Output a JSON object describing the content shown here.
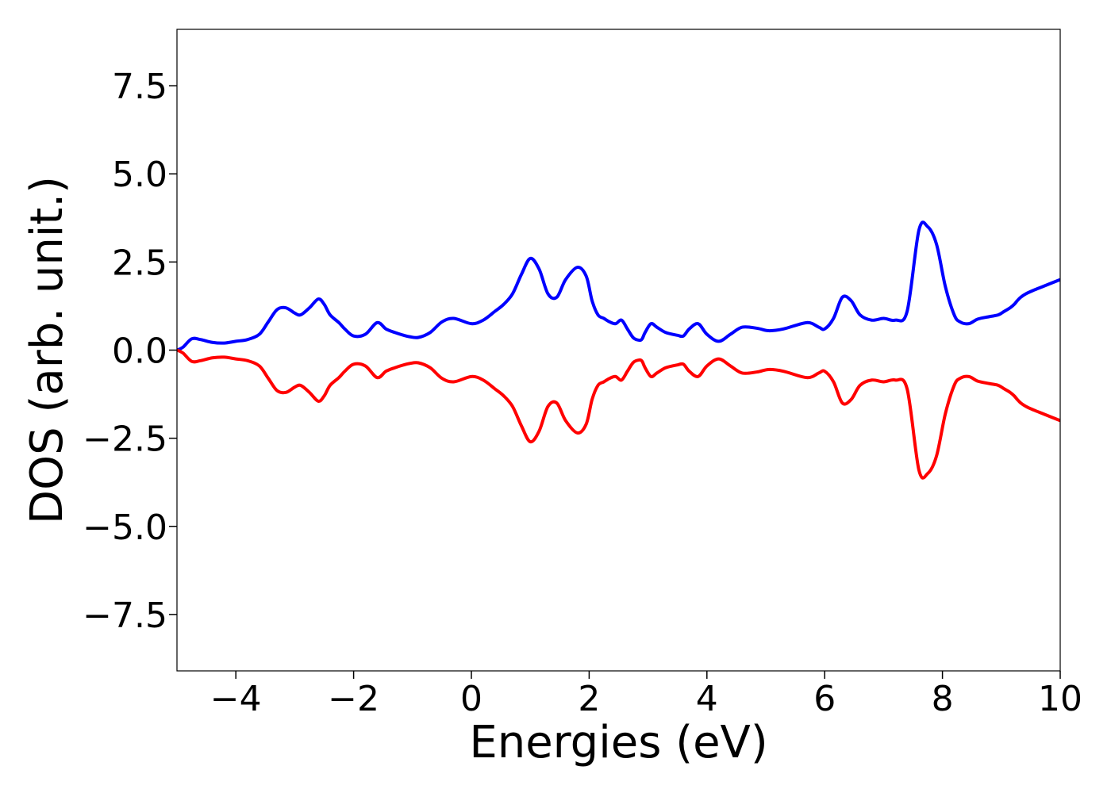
{
  "chart_data": {
    "type": "line",
    "title": "",
    "xlabel": "Energies (eV)",
    "ylabel": "DOS (arb. unit.)",
    "xlim": [
      -5,
      10
    ],
    "ylim": [
      -9.1,
      9.1
    ],
    "xticks": [
      -4,
      -2,
      0,
      2,
      4,
      6,
      8,
      10
    ],
    "xtick_labels": [
      "−4",
      "−2",
      "0",
      "2",
      "4",
      "6",
      "8",
      "10"
    ],
    "yticks": [
      7.5,
      5.0,
      2.5,
      0.0,
      -2.5,
      -5.0,
      -7.5
    ],
    "ytick_labels": [
      "7.5",
      "5.0",
      "2.5",
      "0.0",
      "−2.5",
      "−5.0",
      "−7.5"
    ],
    "grid": false,
    "legend": "none",
    "series": [
      {
        "color": "#0000ff",
        "x": [
          -5.0,
          -4.9,
          -4.75,
          -4.6,
          -4.4,
          -4.2,
          -4.0,
          -3.8,
          -3.6,
          -3.45,
          -3.3,
          -3.15,
          -3.0,
          -2.9,
          -2.75,
          -2.6,
          -2.5,
          -2.4,
          -2.25,
          -2.15,
          -2.0,
          -1.8,
          -1.6,
          -1.45,
          -1.3,
          -1.15,
          -1.05,
          -0.9,
          -0.7,
          -0.5,
          -0.3,
          0.0,
          0.2,
          0.4,
          0.55,
          0.7,
          0.85,
          1.0,
          1.15,
          1.3,
          1.45,
          1.6,
          1.8,
          1.95,
          2.05,
          2.15,
          2.25,
          2.35,
          2.45,
          2.55,
          2.65,
          2.75,
          2.85,
          2.9,
          2.95,
          3.05,
          3.15,
          3.3,
          3.5,
          3.6,
          3.7,
          3.85,
          4.0,
          4.2,
          4.4,
          4.6,
          4.85,
          5.05,
          5.3,
          5.7,
          5.9,
          6.0,
          6.15,
          6.3,
          6.45,
          6.6,
          6.8,
          7.0,
          7.2,
          7.4,
          7.6,
          7.75,
          7.9,
          8.05,
          8.2,
          8.3,
          8.45,
          8.6,
          8.8,
          8.95,
          9.05,
          9.15,
          9.22,
          9.27,
          9.33,
          9.42,
          9.55,
          9.7,
          9.85,
          10.0
        ],
        "values": [
          0.0,
          0.08,
          0.32,
          0.3,
          0.22,
          0.2,
          0.25,
          0.3,
          0.45,
          0.8,
          1.15,
          1.2,
          1.05,
          1.0,
          1.2,
          1.45,
          1.3,
          1.0,
          0.78,
          0.6,
          0.4,
          0.45,
          0.78,
          0.6,
          0.5,
          0.42,
          0.38,
          0.36,
          0.5,
          0.8,
          0.9,
          0.75,
          0.85,
          1.1,
          1.3,
          1.6,
          2.15,
          2.6,
          2.3,
          1.6,
          1.5,
          2.0,
          2.35,
          2.1,
          1.4,
          1.0,
          0.9,
          0.8,
          0.75,
          0.85,
          0.6,
          0.35,
          0.28,
          0.32,
          0.5,
          0.75,
          0.65,
          0.5,
          0.42,
          0.4,
          0.6,
          0.75,
          0.45,
          0.25,
          0.45,
          0.65,
          0.62,
          0.55,
          0.6,
          0.78,
          0.65,
          0.6,
          0.9,
          1.5,
          1.4,
          1.0,
          0.85,
          0.9,
          0.85,
          1.1,
          3.4,
          3.5,
          3.0,
          1.8,
          1.0,
          0.8,
          0.75,
          0.88,
          0.95,
          1.0,
          1.1,
          1.2,
          1.3,
          1.4,
          1.5,
          1.6,
          1.7,
          1.8,
          1.9,
          2.0
        ],
        "note_removed": true
      },
      {
        "color": "#ff0000",
        "x": [
          -5.0,
          -4.9,
          -4.75,
          -4.6,
          -4.4,
          -4.2,
          -4.0,
          -3.8,
          -3.6,
          -3.45,
          -3.3,
          -3.15,
          -3.0,
          -2.9,
          -2.75,
          -2.6,
          -2.5,
          -2.4,
          -2.25,
          -2.15,
          -2.0,
          -1.8,
          -1.6,
          -1.45,
          -1.3,
          -1.15,
          -1.05,
          -0.9,
          -0.7,
          -0.5,
          -0.3,
          0.0,
          0.2,
          0.4,
          0.55,
          0.7,
          0.85,
          1.0,
          1.15,
          1.3,
          1.45,
          1.6,
          1.8,
          1.95,
          2.05,
          2.15,
          2.25,
          2.35,
          2.45,
          2.55,
          2.65,
          2.75,
          2.85,
          2.9,
          2.95,
          3.05,
          3.15,
          3.3,
          3.5,
          3.6,
          3.7,
          3.85,
          4.0,
          4.2,
          4.4,
          4.6,
          4.85,
          5.05,
          5.3,
          5.7,
          5.9,
          6.0,
          6.15,
          6.3,
          6.45,
          6.6,
          6.8,
          7.0,
          7.2,
          7.4,
          7.6,
          7.75,
          7.9,
          8.05,
          8.2,
          8.3,
          8.45,
          8.6,
          8.8,
          8.95,
          9.05,
          9.15,
          9.22,
          9.27,
          9.33,
          9.42,
          9.55,
          9.7,
          9.85,
          10.0
        ],
        "values": [
          0.0,
          -0.08,
          -0.32,
          -0.3,
          -0.22,
          -0.2,
          -0.25,
          -0.3,
          -0.45,
          -0.8,
          -1.15,
          -1.2,
          -1.05,
          -1.0,
          -1.2,
          -1.45,
          -1.3,
          -1.0,
          -0.78,
          -0.6,
          -0.4,
          -0.45,
          -0.78,
          -0.6,
          -0.5,
          -0.42,
          -0.38,
          -0.36,
          -0.5,
          -0.8,
          -0.9,
          -0.75,
          -0.85,
          -1.1,
          -1.3,
          -1.6,
          -2.15,
          -2.6,
          -2.3,
          -1.6,
          -1.5,
          -2.0,
          -2.35,
          -2.1,
          -1.4,
          -1.0,
          -0.9,
          -0.8,
          -0.75,
          -0.85,
          -0.6,
          -0.35,
          -0.28,
          -0.32,
          -0.5,
          -0.75,
          -0.65,
          -0.5,
          -0.42,
          -0.4,
          -0.6,
          -0.75,
          -0.45,
          -0.25,
          -0.45,
          -0.65,
          -0.62,
          -0.55,
          -0.6,
          -0.78,
          -0.65,
          -0.6,
          -0.9,
          -1.5,
          -1.4,
          -1.0,
          -0.85,
          -0.9,
          -0.85,
          -1.1,
          -3.4,
          -3.5,
          -3.0,
          -1.8,
          -1.0,
          -0.8,
          -0.75,
          -0.88,
          -0.95,
          -1.0,
          -1.1,
          -1.2,
          -1.3,
          -1.4,
          -1.5,
          -1.6,
          -1.7,
          -1.8,
          -1.9,
          -2.0
        ]
      }
    ]
  }
}
